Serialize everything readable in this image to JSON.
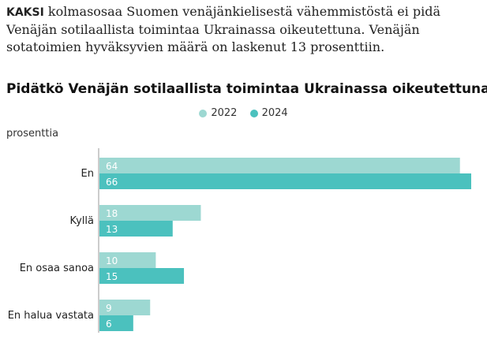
{
  "intro": {
    "kicker": "KAKSI",
    "text": "kolmasosaa Suomen venäjänkielisestä vähemmistöstä ei pidä Venäjän sotilaallista toimintaa Ukrainassa oikeutettuna. Venäjän sotatoimien hyväksyvien määrä on laskenut 13 prosenttiin."
  },
  "colors": {
    "2022": "#9dd8d2",
    "2024": "#4bc1be"
  },
  "chart_data": {
    "type": "bar",
    "orientation": "horizontal",
    "title": "Pidätkö Venäjän sotilaallista toimintaa Ukrainassa oikeutettuna?",
    "unit_label": "prosenttia",
    "legend_position": "top-center",
    "categories": [
      "En",
      "Kyllä",
      "En osaa sanoa",
      "En halua vastata"
    ],
    "series": [
      {
        "name": "2022",
        "values": [
          64,
          18,
          10,
          9
        ]
      },
      {
        "name": "2024",
        "values": [
          66,
          13,
          15,
          6
        ]
      }
    ],
    "xlim": [
      0,
      70
    ],
    "grid": false
  }
}
